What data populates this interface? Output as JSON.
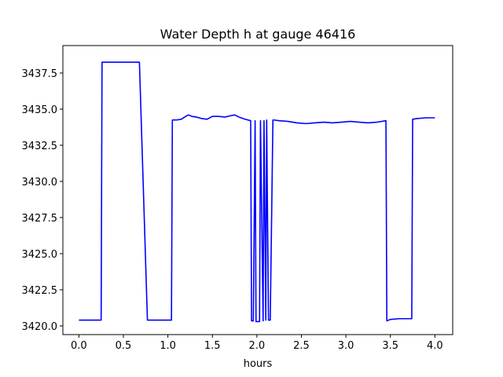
{
  "chart_data": {
    "type": "line",
    "title": "Water Depth h at gauge 46416",
    "xlabel": "hours",
    "ylabel": "",
    "xlim": [
      -0.18,
      4.2
    ],
    "ylim": [
      3419.4,
      3439.4
    ],
    "xticks": [
      0.0,
      0.5,
      1.0,
      1.5,
      2.0,
      2.5,
      3.0,
      3.5,
      4.0
    ],
    "xtick_labels": [
      "0.0",
      "0.5",
      "1.0",
      "1.5",
      "2.0",
      "2.5",
      "3.0",
      "3.5",
      "4.0"
    ],
    "yticks": [
      3420.0,
      3422.5,
      3425.0,
      3427.5,
      3430.0,
      3432.5,
      3435.0,
      3437.5
    ],
    "ytick_labels": [
      "3420.0",
      "3422.5",
      "3425.0",
      "3427.5",
      "3430.0",
      "3432.5",
      "3435.0",
      "3437.5"
    ],
    "grid": false,
    "series": [
      {
        "color": "#0000ff",
        "x": [
          0.0,
          0.25,
          0.26,
          0.68,
          0.77,
          1.04,
          1.05,
          1.1,
          1.15,
          1.2,
          1.23,
          1.27,
          1.32,
          1.38,
          1.44,
          1.5,
          1.57,
          1.64,
          1.71,
          1.75,
          1.8,
          1.87,
          1.93,
          1.94,
          1.96,
          1.98,
          1.99,
          2.03,
          2.04,
          2.07,
          2.08,
          2.1,
          2.11,
          2.13,
          2.15,
          2.18,
          2.19,
          2.25,
          2.35,
          2.45,
          2.55,
          2.65,
          2.75,
          2.85,
          2.95,
          3.05,
          3.15,
          3.25,
          3.35,
          3.45,
          3.46,
          3.5,
          3.6,
          3.74,
          3.75,
          3.8,
          3.9,
          4.0
        ],
        "y": [
          3420.4,
          3420.4,
          3438.25,
          3438.25,
          3420.4,
          3420.4,
          3434.25,
          3434.25,
          3434.3,
          3434.5,
          3434.6,
          3434.5,
          3434.45,
          3434.35,
          3434.3,
          3434.5,
          3434.5,
          3434.45,
          3434.55,
          3434.6,
          3434.45,
          3434.3,
          3434.2,
          3420.35,
          3420.35,
          3434.2,
          3420.3,
          3420.3,
          3434.2,
          3420.35,
          3434.2,
          3420.4,
          3434.25,
          3420.4,
          3420.4,
          3434.25,
          3434.25,
          3434.2,
          3434.15,
          3434.05,
          3434.0,
          3434.05,
          3434.1,
          3434.05,
          3434.1,
          3434.15,
          3434.1,
          3434.05,
          3434.1,
          3434.2,
          3420.35,
          3420.45,
          3420.5,
          3420.5,
          3434.3,
          3434.35,
          3434.4,
          3434.4
        ]
      }
    ]
  }
}
